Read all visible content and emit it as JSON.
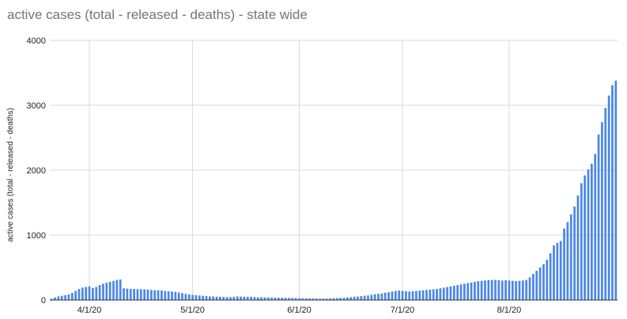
{
  "chart_data": {
    "type": "bar",
    "title": "active cases (total - released - deaths) - state wide",
    "xlabel": "",
    "ylabel": "active cases (total - released - deaths)",
    "ylim": [
      0,
      4000
    ],
    "yticks": [
      "0",
      "1000",
      "2000",
      "3000",
      "4000"
    ],
    "xticks": [
      "4/1/20",
      "5/1/20",
      "6/1/20",
      "7/1/20",
      "8/1/20"
    ],
    "bar_color": "#4a86e8",
    "grid": true,
    "legend": "none",
    "series": [
      {
        "values": [
          20,
          40,
          55,
          65,
          75,
          85,
          110,
          140,
          170,
          190,
          200,
          210,
          185,
          200,
          230,
          250,
          265,
          280,
          295,
          310,
          315,
          180,
          175,
          170,
          170,
          168,
          165,
          165,
          160,
          155,
          150,
          150,
          148,
          140,
          135,
          130,
          125,
          115,
          105,
          95,
          85,
          80,
          75,
          70,
          65,
          60,
          55,
          55,
          50,
          50,
          48,
          45,
          45,
          50,
          55,
          52,
          50,
          50,
          48,
          45,
          42,
          42,
          40,
          40,
          38,
          38,
          36,
          35,
          34,
          33,
          32,
          30,
          28,
          26,
          25,
          25,
          24,
          23,
          22,
          22,
          21,
          25,
          28,
          30,
          33,
          35,
          40,
          45,
          50,
          55,
          60,
          65,
          70,
          80,
          90,
          95,
          100,
          110,
          120,
          130,
          140,
          145,
          140,
          135,
          130,
          135,
          140,
          145,
          150,
          155,
          160,
          165,
          170,
          180,
          190,
          200,
          210,
          220,
          230,
          240,
          250,
          260,
          270,
          280,
          290,
          295,
          300,
          305,
          310,
          310,
          305,
          300,
          305,
          300,
          295,
          290,
          295,
          300,
          310,
          350,
          400,
          450,
          500,
          550,
          620,
          720,
          840,
          880,
          910,
          1100,
          1200,
          1320,
          1440,
          1610,
          1800,
          1920,
          2010,
          2100,
          2250,
          2550,
          2740,
          2960,
          3150,
          3310,
          3380
        ]
      }
    ]
  }
}
